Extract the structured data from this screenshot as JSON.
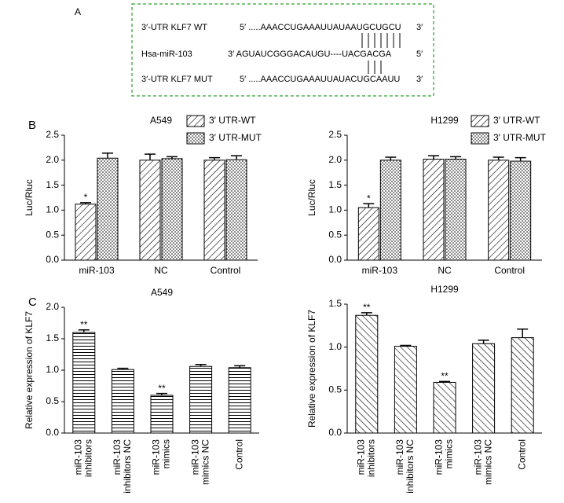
{
  "panel_labels": [
    "A",
    "B",
    "C"
  ],
  "sequence_box": {
    "rows": [
      {
        "label": "3′-UTR KLF7 WT",
        "sequence": "5′ .....AAACCUGAAAUUAUAAUGCUGCU",
        "end": "3′"
      },
      {
        "label": "Hsa-miR-103",
        "sequence": "3′ AGUAUCGGGACAUGU----UACGACGA",
        "end": "5′"
      },
      {
        "label": "3′-UTR KLF7 MUT",
        "sequence": "5′ .....AAACCUGAAAUUAUACUGCAAUU",
        "end": "3′"
      }
    ]
  },
  "chart_data": [
    {
      "type": "bar",
      "title": "A549",
      "y_label": "Luc/Rluc",
      "legend": "upper right",
      "categories": [
        "miR-103",
        "NC",
        "Control"
      ],
      "series": [
        {
          "name": "3′ UTR-WT",
          "pattern": "diagonal",
          "color": "#000000",
          "values": [
            1.12,
            2.0,
            2.0
          ],
          "errors": [
            0.03,
            0.12,
            0.05
          ],
          "markers": [
            "*",
            null,
            null
          ]
        },
        {
          "name": "3′ UTR-MUT",
          "pattern": "dots",
          "color": "#000000",
          "values": [
            2.04,
            2.03,
            2.01
          ],
          "errors": [
            0.1,
            0.04,
            0.08
          ],
          "markers": [
            null,
            null,
            null
          ]
        }
      ],
      "ylim": [
        0,
        2.5
      ],
      "yticks": [
        {
          "value": 0,
          "label": "0.0"
        },
        0.5,
        {
          "value": 1,
          "label": "1.0"
        },
        1.5,
        {
          "value": 2,
          "label": "2.0"
        },
        2.5
      ]
    },
    {
      "type": "bar",
      "title": "H1299",
      "y_label": "Luc/Rluc",
      "legend": "upper right",
      "categories": [
        "miR-103",
        "NC",
        "Control"
      ],
      "series": [
        {
          "name": "3′ UTR-WT",
          "pattern": "diagonal",
          "color": "#000000",
          "values": [
            1.05,
            2.02,
            2.0
          ],
          "errors": [
            0.08,
            0.07,
            0.06
          ],
          "markers": [
            "*",
            null,
            null
          ]
        },
        {
          "name": "3′ UTR-MUT",
          "pattern": "dots",
          "color": "#000000",
          "values": [
            2.0,
            2.02,
            1.98
          ],
          "errors": [
            0.06,
            0.05,
            0.07
          ],
          "markers": [
            null,
            null,
            null
          ]
        }
      ],
      "ylim": [
        0,
        2.5
      ],
      "yticks": [
        {
          "value": 0,
          "label": "0.0"
        },
        0.5,
        {
          "value": 1,
          "label": "1.0"
        },
        1.5,
        {
          "value": 2,
          "label": "2.0"
        },
        2.5
      ]
    },
    {
      "type": "bar",
      "title": "A549",
      "y_label": "Relative expression of KLF7",
      "categories": [
        [
          "miR-103",
          "inhibitors"
        ],
        [
          "miR-103",
          "inhibitors NC"
        ],
        [
          "miR-103",
          "mimics"
        ],
        [
          "miR-103",
          "mimics NC"
        ],
        [
          "Control"
        ]
      ],
      "pattern": "horizontal",
      "color": "#000000",
      "values": [
        1.6,
        1.01,
        0.6,
        1.06,
        1.04
      ],
      "errors": [
        0.04,
        0.02,
        0.03,
        0.03,
        0.03
      ],
      "markers": [
        "**",
        null,
        "**",
        null,
        null
      ],
      "ylim": [
        0,
        2.0
      ],
      "yticks": [
        {
          "value": 0,
          "label": "0.0"
        },
        0.5,
        {
          "value": 1,
          "label": "1.0"
        },
        1.5,
        {
          "value": 2,
          "label": "2.0"
        }
      ]
    },
    {
      "type": "bar",
      "title": "H1299",
      "y_label": "Relative expression of KLF7",
      "categories": [
        [
          "miR-103",
          "inhibitors"
        ],
        [
          "miR-103",
          "inhibitors NC"
        ],
        [
          "miR-103",
          "mimics"
        ],
        [
          "miR-103",
          "mimics NC"
        ],
        [
          "Control"
        ]
      ],
      "pattern": "backdiagonal",
      "color": "#000000",
      "values": [
        1.37,
        1.01,
        0.59,
        1.04,
        1.11
      ],
      "errors": [
        0.03,
        0.01,
        0.01,
        0.04,
        0.1
      ],
      "markers": [
        "**",
        null,
        "**",
        null,
        null
      ],
      "ylim": [
        0,
        1.5
      ],
      "yticks": [
        {
          "value": 0,
          "label": "0.0"
        },
        0.5,
        {
          "value": 1,
          "label": "1.0"
        },
        1.5
      ]
    }
  ]
}
